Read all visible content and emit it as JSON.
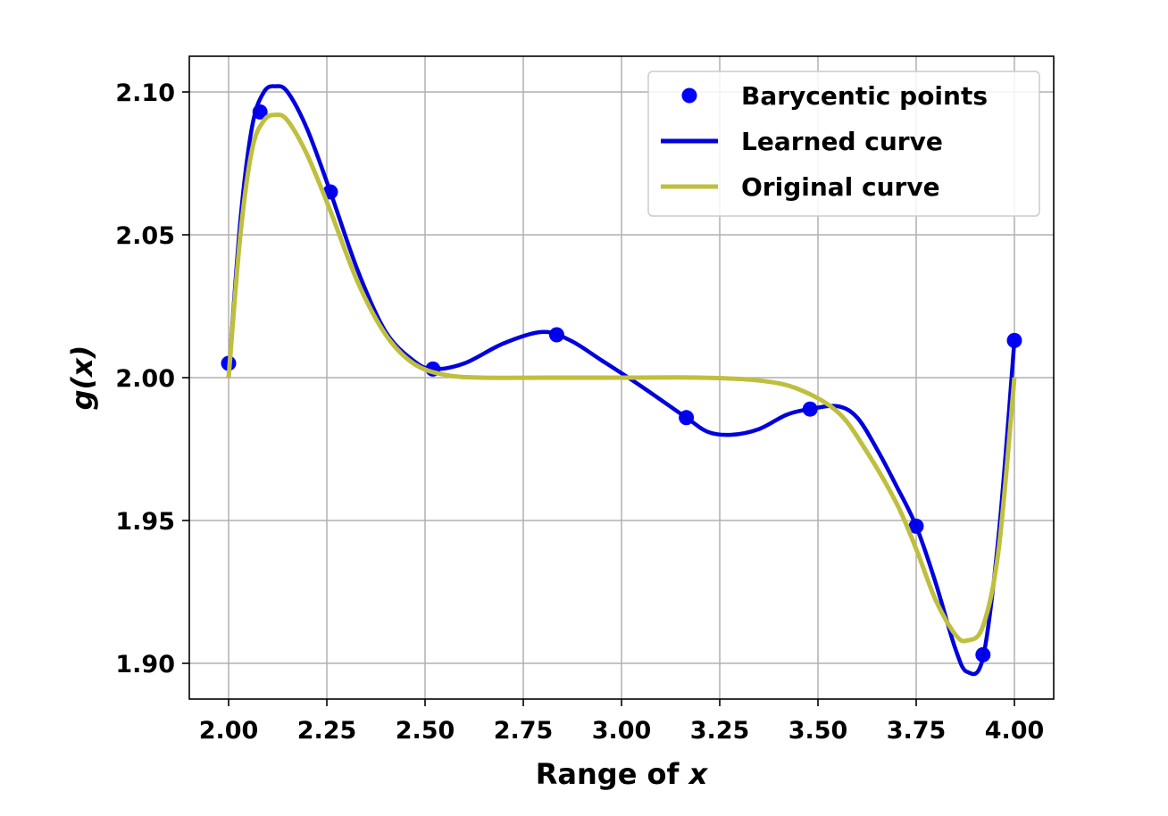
{
  "chart_data": {
    "type": "line",
    "xlabel": "Range of x",
    "ylabel": "g(x)",
    "xlim": [
      1.9,
      4.1
    ],
    "ylim": [
      1.8875,
      2.1125
    ],
    "xticks": [
      2.0,
      2.25,
      2.5,
      2.75,
      3.0,
      3.25,
      3.5,
      3.75,
      4.0
    ],
    "xtick_labels": [
      "2.00",
      "2.25",
      "2.50",
      "2.75",
      "3.00",
      "3.25",
      "3.50",
      "3.75",
      "4.00"
    ],
    "yticks": [
      1.9,
      1.95,
      2.0,
      2.05,
      2.1
    ],
    "ytick_labels": [
      "1.90",
      "1.95",
      "2.00",
      "2.05",
      "2.10"
    ],
    "grid": true,
    "legend_position": "top-right",
    "series": [
      {
        "name": "Barycentic points",
        "kind": "scatter",
        "color": "#0000ff",
        "x": [
          2.0,
          2.08,
          2.259,
          2.52,
          2.835,
          3.165,
          3.48,
          3.75,
          3.92,
          4.0
        ],
        "y": [
          2.005,
          2.093,
          2.065,
          2.003,
          2.015,
          1.986,
          1.989,
          1.948,
          1.903,
          2.013
        ]
      },
      {
        "name": "Learned curve",
        "kind": "line",
        "color": "#0000dd",
        "x": [
          2.0,
          2.03,
          2.06,
          2.09,
          2.12,
          2.15,
          2.2,
          2.259,
          2.33,
          2.4,
          2.47,
          2.52,
          2.6,
          2.7,
          2.8,
          2.87,
          2.95,
          3.05,
          3.165,
          3.22,
          3.28,
          3.35,
          3.42,
          3.48,
          3.55,
          3.6,
          3.65,
          3.7,
          3.75,
          3.8,
          3.85,
          3.88,
          3.92,
          3.96,
          4.0
        ],
        "y": [
          2.0,
          2.055,
          2.088,
          2.1,
          2.102,
          2.1,
          2.087,
          2.065,
          2.037,
          2.016,
          2.006,
          2.003,
          2.005,
          2.012,
          2.016,
          2.013,
          2.006,
          1.997,
          1.986,
          1.981,
          1.98,
          1.982,
          1.987,
          1.989,
          1.99,
          1.986,
          1.975,
          1.962,
          1.948,
          1.928,
          1.905,
          1.897,
          1.902,
          1.945,
          2.013
        ]
      },
      {
        "name": "Original curve",
        "kind": "line",
        "color": "#bfbf3f",
        "x": [
          2.0,
          2.03,
          2.06,
          2.09,
          2.12,
          2.15,
          2.2,
          2.26,
          2.33,
          2.4,
          2.47,
          2.55,
          2.65,
          2.8,
          3.0,
          3.2,
          3.35,
          3.45,
          3.55,
          3.62,
          3.7,
          3.75,
          3.8,
          3.85,
          3.88,
          3.92,
          3.96,
          4.0
        ],
        "y": [
          2.0,
          2.05,
          2.08,
          2.09,
          2.092,
          2.09,
          2.078,
          2.058,
          2.033,
          2.015,
          2.005,
          2.001,
          2.0,
          2.0,
          2.0,
          2.0,
          1.999,
          1.996,
          1.988,
          1.975,
          1.956,
          1.94,
          1.922,
          1.91,
          1.908,
          1.913,
          1.94,
          2.0
        ]
      }
    ]
  }
}
